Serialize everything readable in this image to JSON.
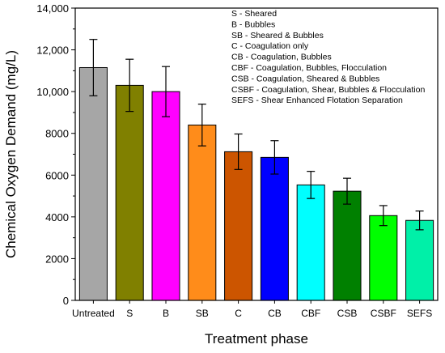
{
  "chart_data": {
    "type": "bar",
    "xlabel": "Treatment phase",
    "ylabel": "Chemical Oxygen Demand (mg/L)",
    "ylim": [
      0,
      14000
    ],
    "yticks": [
      0,
      2000,
      4000,
      6000,
      8000,
      10000,
      12000,
      14000
    ],
    "ytick_labels": [
      "0",
      "2000",
      "4000",
      "6000",
      "8000",
      "10,000",
      "12,000",
      "14,000"
    ],
    "categories": [
      "Untreated",
      "S",
      "B",
      "SB",
      "C",
      "CB",
      "CBF",
      "CSB",
      "CSBF",
      "SEFS"
    ],
    "values": [
      11150,
      10300,
      10000,
      8400,
      7120,
      6850,
      5530,
      5230,
      4060,
      3830
    ],
    "errors": [
      1350,
      1250,
      1200,
      1000,
      850,
      800,
      650,
      620,
      480,
      450
    ],
    "colors": [
      "#a6a6a6",
      "#808000",
      "#ff00ff",
      "#ff8c1a",
      "#cc5500",
      "#0000ff",
      "#00ffff",
      "#008000",
      "#00ff00",
      "#00f0a8"
    ],
    "grid": false,
    "legend": {
      "placement": "top-right",
      "entries": [
        "S - Sheared",
        "B - Bubbles",
        "SB - Sheared & Bubbles",
        "C - Coagulation only",
        "CB - Coagulation, Bubbles",
        "CBF - Coagulation, Bubbles, Flocculation",
        "CSB - Coagulation, Sheared & Bubbles",
        "CSBF - Coagulation, Shear, Bubbles & Flocculation",
        "SEFS - Shear Enhanced Flotation Separation"
      ]
    }
  }
}
